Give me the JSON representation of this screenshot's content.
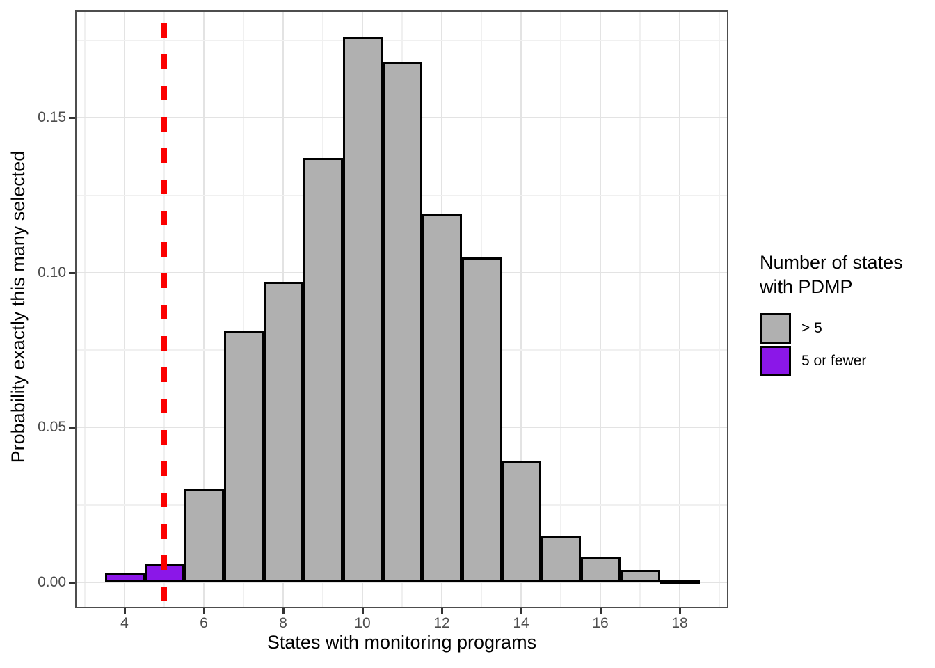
{
  "chart_data": {
    "type": "bar",
    "title": "",
    "xlabel": "States with monitoring programs",
    "ylabel": "Probability exactly this many selected",
    "x": [
      4,
      5,
      6,
      7,
      8,
      9,
      10,
      11,
      12,
      13,
      14,
      15,
      16,
      17,
      18
    ],
    "values": [
      0.003,
      0.006,
      0.03,
      0.081,
      0.097,
      0.137,
      0.176,
      0.168,
      0.119,
      0.105,
      0.039,
      0.015,
      0.008,
      0.004,
      0.001
    ],
    "groups": [
      "5 or fewer",
      "5 or fewer",
      "> 5",
      "> 5",
      "> 5",
      "> 5",
      "> 5",
      "> 5",
      "> 5",
      "> 5",
      "> 5",
      "> 5",
      "> 5",
      "> 5",
      "> 5"
    ],
    "bar_width": 1,
    "x_ticks": [
      4,
      6,
      8,
      10,
      12,
      14,
      16,
      18
    ],
    "y_ticks": [
      {
        "value": 0.0,
        "label": "0.00"
      },
      {
        "value": 0.05,
        "label": "0.05"
      },
      {
        "value": 0.1,
        "label": "0.10"
      },
      {
        "value": 0.15,
        "label": "0.15"
      }
    ],
    "y_minor_ticks": [
      0.025,
      0.075,
      0.125,
      0.175
    ],
    "x_grid_range": [
      3,
      19
    ],
    "xlim": [
      2.75,
      19.25
    ],
    "ylim": [
      -0.008,
      0.184
    ],
    "grid": true,
    "legend_position": "right",
    "vline": {
      "x": 5,
      "style": "dashed",
      "color": "#fb0000",
      "stroke_width": 8
    },
    "legend": {
      "title": "Number of states\nwith PDMP",
      "items": [
        {
          "label": "> 5",
          "color": "#b0b0b0"
        },
        {
          "label": "5 or fewer",
          "color": "#8b17e8"
        }
      ]
    },
    "colors": {
      "bar_fill_default": "#b0b0b0",
      "bar_fill_highlight": "#8b17e8",
      "bar_stroke": "#000000",
      "vline_red": "#fb0000",
      "tick_label_gray": "#4d4d4d"
    }
  }
}
